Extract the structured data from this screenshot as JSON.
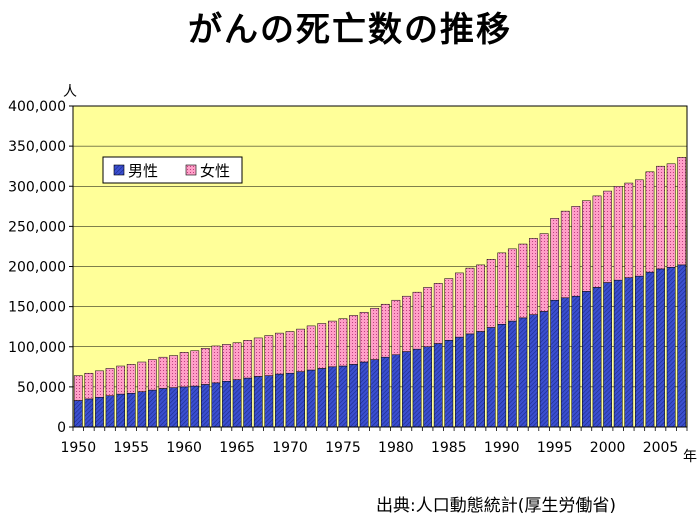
{
  "title": "がんの死亡数の推移",
  "source": "出典:人口動態統計(厚生労働省)",
  "colors": {
    "plot_bg": "#ffff99",
    "male": "#3b4fd0",
    "female": "#ff9fc8"
  },
  "chart_data": {
    "type": "bar",
    "stacked": true,
    "ylabel_unit": "人",
    "xlabel_unit": "年",
    "ylim": [
      0,
      400000
    ],
    "yticks": [
      0,
      50000,
      100000,
      150000,
      200000,
      250000,
      300000,
      350000,
      400000
    ],
    "ytick_labels": [
      "0",
      "50,000",
      "100,000",
      "150,000",
      "200,000",
      "250,000",
      "300,000",
      "350,000",
      "400,000"
    ],
    "xtick_labels": [
      "1950",
      "1955",
      "1960",
      "1965",
      "1970",
      "1975",
      "1980",
      "1985",
      "1990",
      "1995",
      "2000",
      "2005"
    ],
    "legend_position": "top-left",
    "grid": true,
    "categories": [
      1950,
      1951,
      1952,
      1953,
      1954,
      1955,
      1956,
      1957,
      1958,
      1959,
      1960,
      1961,
      1962,
      1963,
      1964,
      1965,
      1966,
      1967,
      1968,
      1969,
      1970,
      1971,
      1972,
      1973,
      1974,
      1975,
      1976,
      1977,
      1978,
      1979,
      1980,
      1981,
      1982,
      1983,
      1984,
      1985,
      1986,
      1987,
      1988,
      1989,
      1990,
      1991,
      1992,
      1993,
      1994,
      1995,
      1996,
      1997,
      1998,
      1999,
      2000,
      2001,
      2002,
      2003,
      2004,
      2005,
      2006,
      2007
    ],
    "series": [
      {
        "name": "男性",
        "values": [
          33000,
          35000,
          37000,
          39000,
          41000,
          42000,
          44000,
          46000,
          48000,
          49000,
          50000,
          51000,
          53000,
          55000,
          57000,
          59000,
          61000,
          63000,
          64000,
          66000,
          67000,
          69000,
          71000,
          73000,
          75000,
          76000,
          78000,
          81000,
          84000,
          87000,
          90000,
          94000,
          97000,
          100000,
          104000,
          108000,
          112000,
          116000,
          119000,
          124000,
          128000,
          132000,
          136000,
          140000,
          144000,
          158000,
          161000,
          163000,
          169000,
          174000,
          180000,
          183000,
          186000,
          188000,
          193000,
          197000,
          199000,
          202000
        ]
      },
      {
        "name": "女性",
        "values": [
          31000,
          32000,
          33000,
          34000,
          35000,
          36000,
          37000,
          38000,
          39000,
          40000,
          43000,
          44000,
          45000,
          46000,
          46000,
          46000,
          47000,
          48000,
          50000,
          51000,
          52000,
          53000,
          55000,
          56000,
          57000,
          59000,
          61000,
          62000,
          64000,
          66000,
          68000,
          69000,
          71000,
          74000,
          75000,
          77000,
          80000,
          82000,
          83000,
          85000,
          89000,
          90000,
          92000,
          95000,
          97000,
          102000,
          108000,
          112000,
          113000,
          114000,
          114000,
          117000,
          118000,
          120000,
          125000,
          128000,
          129000,
          134000
        ]
      }
    ]
  }
}
